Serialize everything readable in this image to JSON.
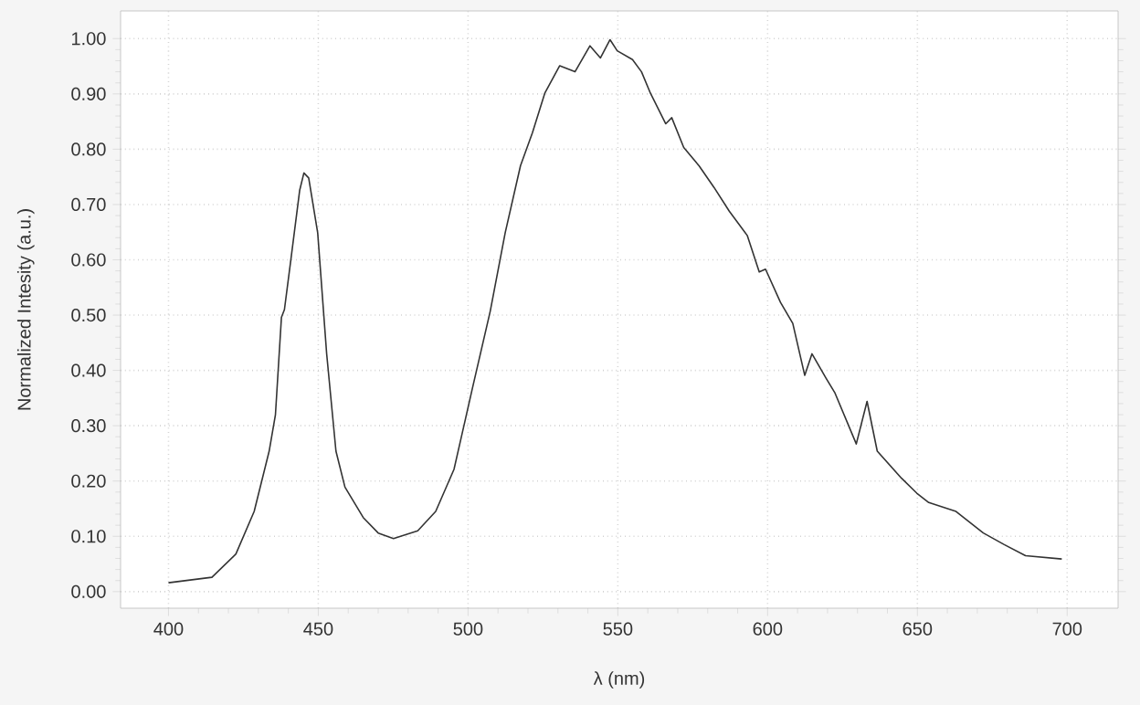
{
  "chart_data": {
    "type": "line",
    "xlabel": "λ (nm)",
    "ylabel": "Normalized Intesity (a.u.)",
    "xlim": [
      384,
      717
    ],
    "ylim": [
      -0.03,
      1.05
    ],
    "xticks": [
      400,
      450,
      500,
      550,
      600,
      650,
      700
    ],
    "yticks": [
      {
        "value": 0,
        "label": "0.00"
      },
      {
        "value": 0.1,
        "label": "0.10"
      },
      {
        "value": 0.2,
        "label": "0.20"
      },
      {
        "value": 0.3,
        "label": "0.30"
      },
      {
        "value": 0.4,
        "label": "0.40"
      },
      {
        "value": 0.5,
        "label": "0.50"
      },
      {
        "value": 0.6,
        "label": "0.60"
      },
      {
        "value": 0.7,
        "label": "0.70"
      },
      {
        "value": 0.8,
        "label": "0.80"
      },
      {
        "value": 0.9,
        "label": "0.90"
      },
      {
        "value": 1,
        "label": "1.00"
      }
    ],
    "grid": true,
    "line_style": "solid",
    "marker": "none",
    "series": [
      {
        "color": "#333333",
        "x": [
          400,
          414.5,
          422.5,
          428.6,
          433.6,
          435.7,
          437.7,
          438.7,
          440.7,
          443.8,
          445.2,
          446.8,
          449.8,
          452.8,
          455.9,
          458.9,
          465,
          470,
          475.1,
          483.2,
          489.2,
          495.3,
          501.3,
          507.4,
          512.4,
          517.5,
          521.5,
          525.6,
          530.6,
          535.7,
          540.7,
          544.2,
          547.4,
          549.8,
          554.9,
          557.9,
          560.9,
          566,
          568,
          572,
          577.1,
          582.1,
          587.2,
          593.2,
          597.2,
          599.3,
          604.3,
          608.4,
          612.4,
          614.8,
          619.5,
          622.5,
          629.6,
          633.2,
          636.6,
          644.7,
          649.8,
          653.8,
          662.9,
          672,
          679,
          686.1,
          698.2
        ],
        "values": [
          0.016,
          0.026,
          0.068,
          0.145,
          0.254,
          0.32,
          0.496,
          0.51,
          0.594,
          0.726,
          0.757,
          0.748,
          0.649,
          0.43,
          0.254,
          0.189,
          0.134,
          0.106,
          0.096,
          0.11,
          0.145,
          0.221,
          0.364,
          0.507,
          0.649,
          0.77,
          0.83,
          0.901,
          0.951,
          0.94,
          0.987,
          0.965,
          0.998,
          0.978,
          0.962,
          0.94,
          0.901,
          0.846,
          0.857,
          0.803,
          0.77,
          0.731,
          0.688,
          0.644,
          0.578,
          0.583,
          0.523,
          0.485,
          0.391,
          0.43,
          0.386,
          0.359,
          0.267,
          0.344,
          0.254,
          0.205,
          0.178,
          0.161,
          0.145,
          0.106,
          0.085,
          0.065,
          0.059
        ]
      }
    ]
  }
}
